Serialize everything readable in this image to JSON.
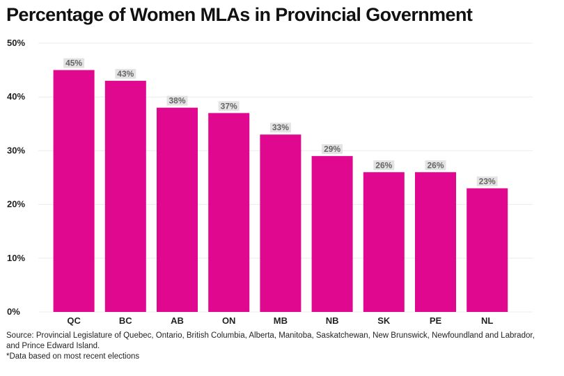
{
  "chart_data": {
    "type": "bar",
    "title": "Percentage of Women MLAs in Provincial Government",
    "categories": [
      "QC",
      "BC",
      "AB",
      "ON",
      "MB",
      "NB",
      "SK",
      "PE",
      "NL"
    ],
    "values": [
      45,
      43,
      38,
      37,
      33,
      29,
      26,
      26,
      23
    ],
    "value_labels": [
      "45%",
      "43%",
      "38%",
      "37%",
      "33%",
      "29%",
      "26%",
      "26%",
      "23%"
    ],
    "y_ticks": [
      0,
      10,
      20,
      30,
      40,
      50
    ],
    "y_tick_labels": [
      "0%",
      "10%",
      "20%",
      "30%",
      "40%",
      "50%"
    ],
    "ylim": [
      0,
      50
    ],
    "grid": true,
    "legend": "none",
    "bar_color": "#e0088f",
    "value_label_bg": "#e3e3e3"
  },
  "footnotes": {
    "source": "Source: Provincial Legislature of Quebec, Ontario, British Columbia, Alberta, Manitoba, Saskatchewan, New Brunswick, Newfoundland and Labrador, and Prince Edward Island.",
    "note": "*Data based on most recent elections"
  }
}
